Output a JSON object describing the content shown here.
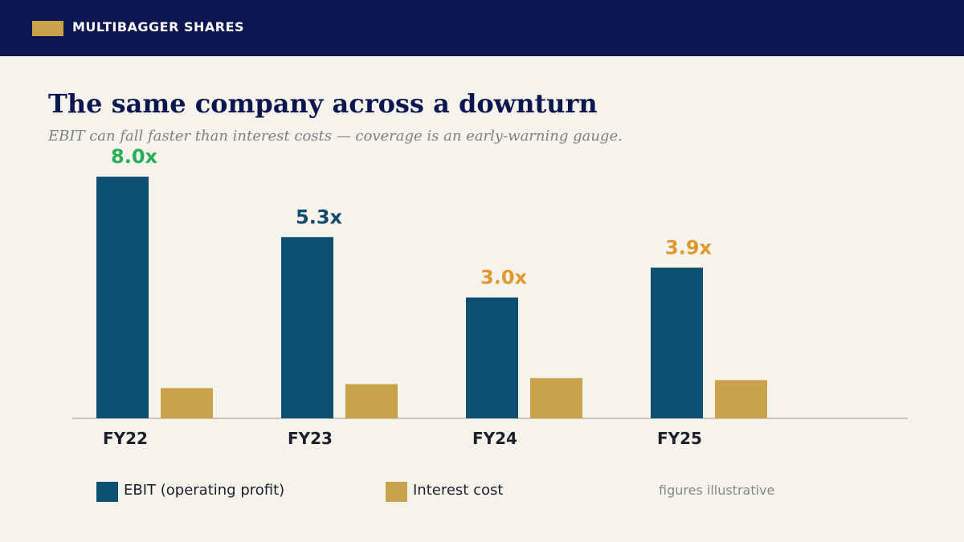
{
  "brand": {
    "name": "MULTIBAGGER SHARES",
    "mark_color": "#c9a24a"
  },
  "header": {
    "title": "The same company across a downturn",
    "subtitle": "EBIT can fall faster than interest costs — coverage is an early-warning gauge."
  },
  "chart_data": {
    "type": "bar",
    "categories": [
      "FY22",
      "FY23",
      "FY24",
      "FY25"
    ],
    "series": [
      {
        "name": "EBIT (operating profit)",
        "color": "#0d4f70",
        "values": [
          300,
          225,
          150,
          187
        ]
      },
      {
        "name": "Interest cost",
        "color": "#c9a24a",
        "values": [
          37.5,
          42.5,
          50,
          47.5
        ]
      }
    ],
    "annotations": [
      {
        "category": "FY22",
        "text": "8.0x",
        "color": "#27ae56"
      },
      {
        "category": "FY23",
        "text": "5.3x",
        "color": "#124c6c"
      },
      {
        "category": "FY24",
        "text": "3.0x",
        "color": "#e0992f"
      },
      {
        "category": "FY25",
        "text": "3.9x",
        "color": "#e0992f"
      }
    ],
    "ylim": [
      0,
      300
    ],
    "grid": false,
    "legend_position": "bottom-left",
    "note": "figures illustrative"
  }
}
